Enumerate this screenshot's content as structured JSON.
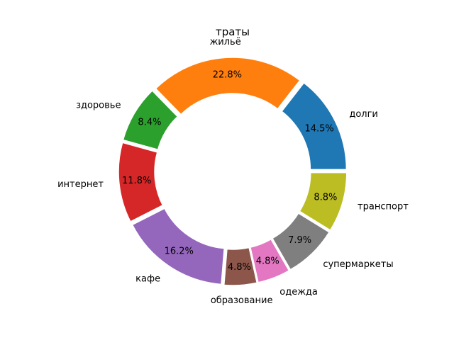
{
  "chart_data": {
    "type": "pie",
    "title": "траты",
    "donut": true,
    "start_angle_deg": 0,
    "direction": "counterclockwise",
    "categories": [
      "долги",
      "жильё",
      "здоровье",
      "интернет",
      "кафе",
      "образование",
      "одежда",
      "супермаркеты",
      "транспорт"
    ],
    "values": [
      14.5,
      22.8,
      8.4,
      11.8,
      16.2,
      4.8,
      4.8,
      7.9,
      8.8
    ],
    "value_labels": [
      "14.5%",
      "22.8%",
      "8.4%",
      "11.8%",
      "16.2%",
      "4.8%",
      "4.8%",
      "7.9%",
      "8.8%"
    ],
    "colors": [
      "#1f77b4",
      "#ff7f0e",
      "#2ca02c",
      "#d62728",
      "#9467bd",
      "#8c564b",
      "#e377c2",
      "#7f7f7f",
      "#bcbd22"
    ]
  }
}
